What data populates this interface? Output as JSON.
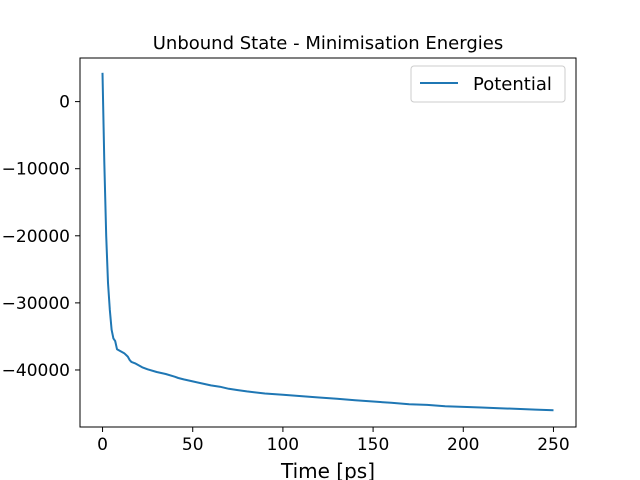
{
  "chart_data": {
    "type": "line",
    "title": "Unbound State - Minimisation Energies",
    "xlabel": "Time [ps]",
    "ylabel": "",
    "xlim": [
      -12.5,
      262.5
    ],
    "ylim": [
      -48500,
      6500
    ],
    "x_ticks": [
      0,
      50,
      100,
      150,
      200,
      250
    ],
    "y_ticks": [
      0,
      -10000,
      -20000,
      -30000,
      -40000
    ],
    "x_tick_labels": [
      "0",
      "50",
      "100",
      "150",
      "200",
      "250"
    ],
    "y_tick_labels": [
      "0",
      "−10000",
      "−20000",
      "−30000",
      "−40000"
    ],
    "legend_position": "upper-right",
    "grid": false,
    "series": [
      {
        "name": "Potential",
        "color": "#1f77b4",
        "x": [
          0,
          1,
          2,
          3,
          4,
          5,
          6,
          7,
          8,
          10,
          12,
          14,
          15,
          16,
          18,
          20,
          22,
          25,
          30,
          35,
          40,
          42,
          45,
          50,
          55,
          60,
          65,
          70,
          75,
          80,
          90,
          100,
          110,
          120,
          130,
          140,
          150,
          160,
          170,
          180,
          190,
          200,
          210,
          220,
          230,
          240,
          250
        ],
        "y": [
          4300,
          -9000,
          -20000,
          -27000,
          -31000,
          -34000,
          -35300,
          -35700,
          -36900,
          -37200,
          -37500,
          -38000,
          -38500,
          -38800,
          -39000,
          -39300,
          -39600,
          -39900,
          -40300,
          -40600,
          -41000,
          -41200,
          -41400,
          -41700,
          -42000,
          -42300,
          -42500,
          -42800,
          -43000,
          -43200,
          -43500,
          -43700,
          -43900,
          -44100,
          -44300,
          -44500,
          -44700,
          -44900,
          -45100,
          -45200,
          -45400,
          -45500,
          -45600,
          -45700,
          -45800,
          -45900,
          -46000
        ]
      }
    ]
  }
}
